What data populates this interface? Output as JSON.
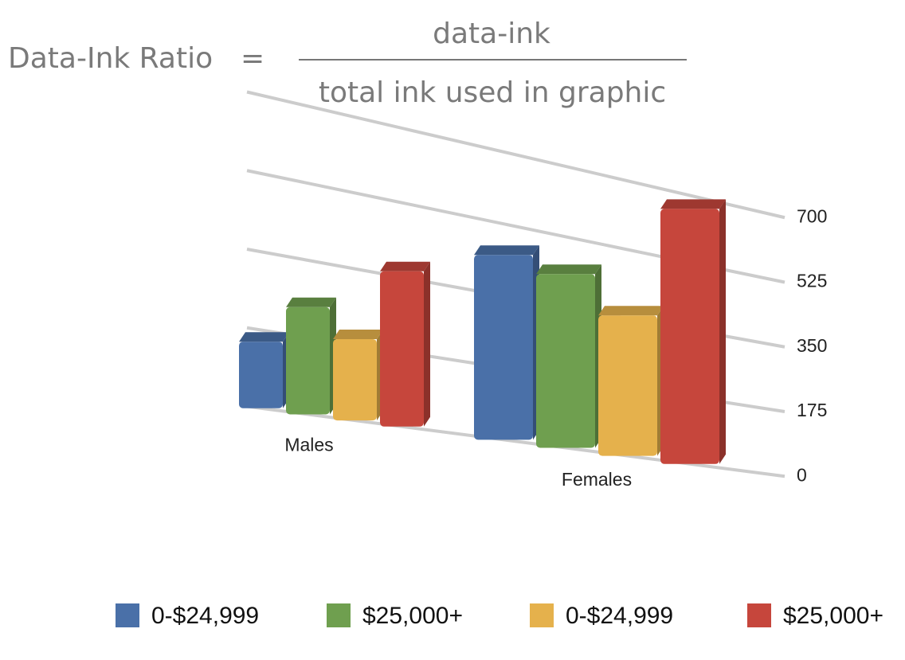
{
  "formula": {
    "left": "Data-Ink Ratio",
    "equals": "=",
    "numerator": "data-ink",
    "denominator": "total ink used in graphic"
  },
  "chart_data": {
    "type": "bar3d",
    "categories": [
      "Males",
      "Females"
    ],
    "series": [
      {
        "name": "0-$24,999",
        "color": "#4a70a8",
        "values": [
          180,
          500
        ]
      },
      {
        "name": "$25,000+",
        "color": "#6f9f4f",
        "values": [
          290,
          470
        ]
      },
      {
        "name": "0-$24,999",
        "color": "#e5b14c",
        "values": [
          220,
          380
        ]
      },
      {
        "name": "$25,000+",
        "color": "#c6463c",
        "values": [
          420,
          690
        ]
      }
    ],
    "ylim": [
      0,
      700
    ],
    "yticks": [
      0,
      175,
      350,
      525,
      700
    ],
    "grid": true,
    "legend": "bottom"
  }
}
